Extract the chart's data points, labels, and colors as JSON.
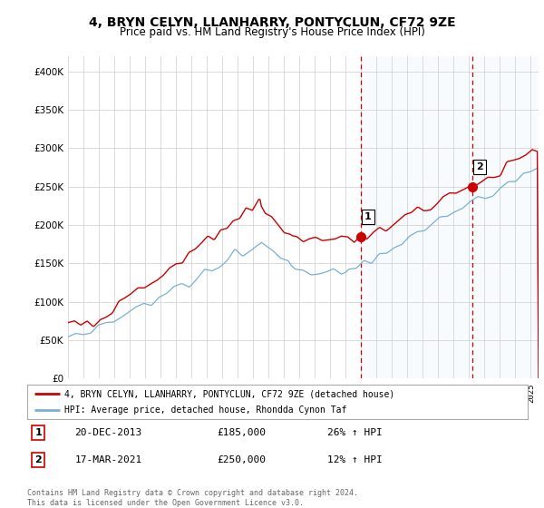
{
  "title": "4, BRYN CELYN, LLANHARRY, PONTYCLUN, CF72 9ZE",
  "subtitle": "Price paid vs. HM Land Registry's House Price Index (HPI)",
  "legend_line1": "4, BRYN CELYN, LLANHARRY, PONTYCLUN, CF72 9ZE (detached house)",
  "legend_line2": "HPI: Average price, detached house, Rhondda Cynon Taf",
  "annotation1_label": "1",
  "annotation1_date": "20-DEC-2013",
  "annotation1_price": "£185,000",
  "annotation1_hpi": "26% ↑ HPI",
  "annotation2_label": "2",
  "annotation2_date": "17-MAR-2021",
  "annotation2_price": "£250,000",
  "annotation2_hpi": "12% ↑ HPI",
  "footer": "Contains HM Land Registry data © Crown copyright and database right 2024.\nThis data is licensed under the Open Government Licence v3.0.",
  "red_line_color": "#cc0000",
  "blue_line_color": "#7ab0d4",
  "shade_color": "#d0e8f5",
  "annotation_vline_color": "#cc0000",
  "background_color": "#ffffff",
  "grid_color": "#cccccc",
  "ylim": [
    0,
    420000
  ],
  "yticks": [
    0,
    50000,
    100000,
    150000,
    200000,
    250000,
    300000,
    350000,
    400000
  ],
  "sale1_x": 2013.97,
  "sale1_y": 185000,
  "sale2_x": 2021.21,
  "sale2_y": 250000,
  "xmin": 1995.0,
  "xmax": 2025.5
}
